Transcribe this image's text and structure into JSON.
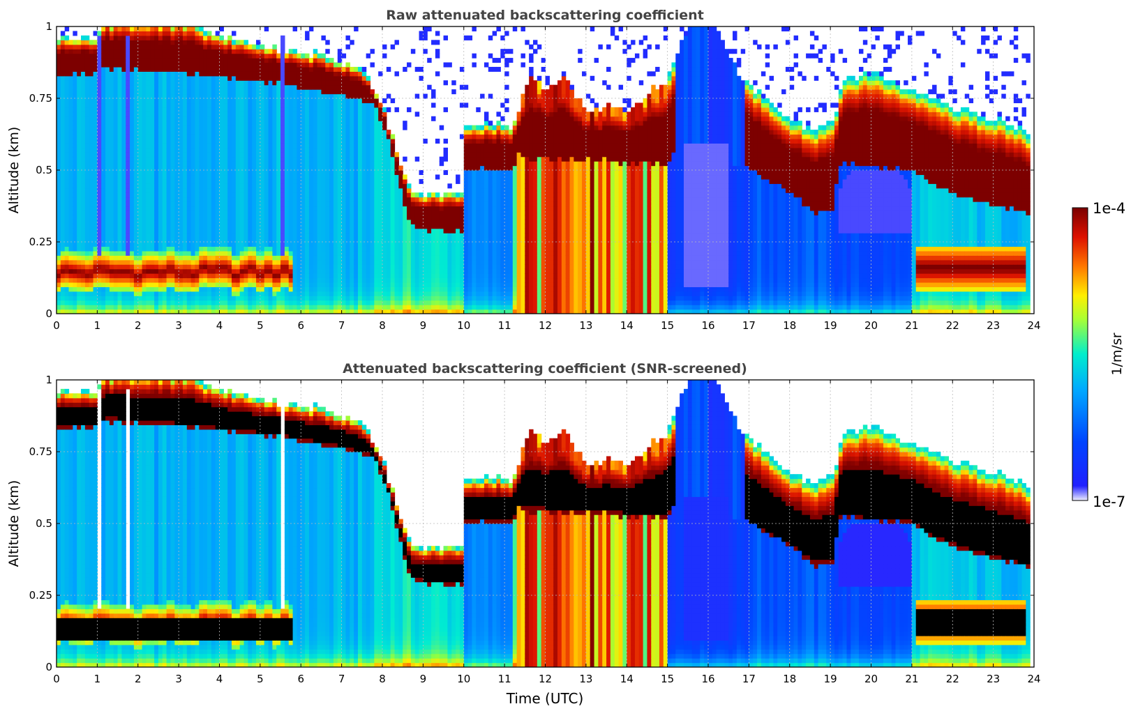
{
  "chart_data": [
    {
      "type": "heatmap",
      "title": "Raw attenuated backscattering coefficient",
      "xlabel": "",
      "ylabel": "Altitude (km)",
      "xlim": [
        0,
        24
      ],
      "ylim": [
        0,
        1
      ],
      "xticks": [
        "0",
        "1",
        "2",
        "3",
        "4",
        "5",
        "6",
        "7",
        "8",
        "9",
        "10",
        "11",
        "12",
        "13",
        "14",
        "15",
        "16",
        "17",
        "18",
        "19",
        "20",
        "21",
        "22",
        "23",
        "24"
      ],
      "yticks": [
        {
          "value": 0,
          "label": "0"
        },
        {
          "value": 0.25,
          "label": "0.25"
        },
        {
          "value": 0.5,
          "label": "0.5"
        },
        {
          "value": 0.75,
          "label": "0.75"
        },
        {
          "value": 1,
          "label": "1"
        }
      ],
      "grid": true,
      "screened": false,
      "layers": [
        {
          "kind": "cloud",
          "from_utc": 0,
          "to_utc": 1.0,
          "base_km": 0.84,
          "top_km": 0.95
        },
        {
          "kind": "cloud",
          "from_utc": 1.2,
          "to_utc": 5.5,
          "base_km": 0.82,
          "top_km": 1.0
        },
        {
          "kind": "cloud",
          "from_utc": 5.5,
          "to_utc": 7.8,
          "base_km": 0.75,
          "top_km": 0.88
        },
        {
          "kind": "cloud",
          "from_utc": 7.8,
          "to_utc": 8.6,
          "base_km": 0.45,
          "top_km": 0.65
        },
        {
          "kind": "cloud",
          "from_utc": 8.6,
          "to_utc": 10.0,
          "base_km": 0.3,
          "top_km": 0.4
        },
        {
          "kind": "cloud",
          "from_utc": 10.0,
          "to_utc": 11.3,
          "base_km": 0.5,
          "top_km": 0.63
        },
        {
          "kind": "cloud",
          "from_utc": 11.3,
          "to_utc": 15.0,
          "base_km": 0.0,
          "top_km": 0.75
        },
        {
          "kind": "cloud",
          "from_utc": 17.0,
          "to_utc": 19.1,
          "base_km": 0.33,
          "top_km": 0.6
        },
        {
          "kind": "cloud",
          "from_utc": 19.1,
          "to_utc": 21.0,
          "base_km": 0.52,
          "top_km": 0.7
        },
        {
          "kind": "cloud",
          "from_utc": 21.0,
          "to_utc": 23.8,
          "base_km": 0.12,
          "top_km": 0.2
        },
        {
          "kind": "aerosol",
          "from_utc": 0,
          "to_utc": 5.7,
          "base_km": 0.03,
          "top_km": 0.15
        }
      ]
    },
    {
      "type": "heatmap",
      "title": "Attenuated backscattering coefficient (SNR-screened)",
      "xlabel": "Time (UTC)",
      "ylabel": "Altitude (km)",
      "xlim": [
        0,
        24
      ],
      "ylim": [
        0,
        1
      ],
      "xticks": [
        "0",
        "1",
        "2",
        "3",
        "4",
        "5",
        "6",
        "7",
        "8",
        "9",
        "10",
        "11",
        "12",
        "13",
        "14",
        "15",
        "16",
        "17",
        "18",
        "19",
        "20",
        "21",
        "22",
        "23",
        "24"
      ],
      "yticks": [
        {
          "value": 0,
          "label": "0"
        },
        {
          "value": 0.25,
          "label": "0.25"
        },
        {
          "value": 0.5,
          "label": "0.5"
        },
        {
          "value": 0.75,
          "label": "0.75"
        },
        {
          "value": 1,
          "label": "1"
        }
      ],
      "grid": true,
      "screened": true
    }
  ],
  "colorbar": {
    "label": "1/m/sr",
    "min_label": "1e-7",
    "max_label": "1e-4",
    "scale": "log",
    "colormap": "jet",
    "colors": [
      "#eeeeff",
      "#0000ff",
      "#00aaff",
      "#00ffee",
      "#ffff00",
      "#ff6600",
      "#cc0000",
      "#800000"
    ]
  }
}
